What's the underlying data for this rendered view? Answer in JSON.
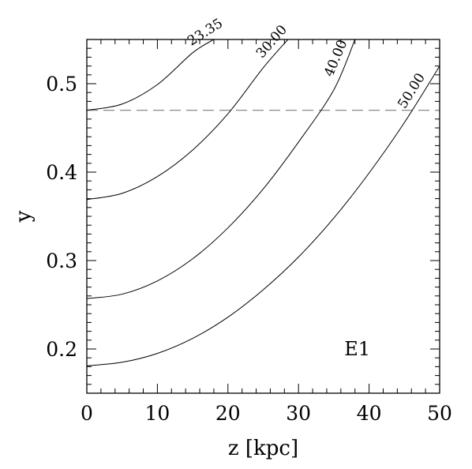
{
  "chart_data": {
    "type": "line",
    "xlabel": "z [kpc]",
    "ylabel": "y",
    "xlim": [
      0,
      50
    ],
    "ylim": [
      0.15,
      0.55
    ],
    "xticks": [
      0,
      10,
      20,
      30,
      40,
      50
    ],
    "xtick_labels": [
      "0",
      "10",
      "20",
      "30",
      "40",
      "50"
    ],
    "yticks": [
      0.2,
      0.3,
      0.4,
      0.5
    ],
    "ytick_labels": [
      "0.2",
      "0.3",
      "0.4",
      "0.5"
    ],
    "grid": false,
    "annotation": "E1",
    "reference_line": {
      "y": 0.47,
      "style": "dashed"
    },
    "series": [
      {
        "name": "23.35",
        "y0": 0.47,
        "x": [
          0,
          5,
          10,
          15,
          18
        ],
        "y": [
          0.47,
          0.477,
          0.499,
          0.535,
          0.55
        ]
      },
      {
        "name": "30.00",
        "y0": 0.369,
        "x": [
          0,
          5,
          10,
          15,
          20,
          25,
          28.5
        ],
        "y": [
          0.369,
          0.376,
          0.395,
          0.425,
          0.466,
          0.518,
          0.55
        ]
      },
      {
        "name": "40.00",
        "y0": 0.257,
        "x": [
          0,
          5,
          10,
          15,
          20,
          25,
          30,
          35,
          38
        ],
        "y": [
          0.257,
          0.262,
          0.277,
          0.302,
          0.337,
          0.381,
          0.434,
          0.493,
          0.55
        ]
      },
      {
        "name": "50.00",
        "y0": 0.181,
        "x": [
          0,
          5,
          10,
          15,
          20,
          25,
          30,
          35,
          40,
          45,
          50
        ],
        "y": [
          0.181,
          0.185,
          0.195,
          0.212,
          0.236,
          0.267,
          0.304,
          0.348,
          0.399,
          0.456,
          0.52
        ]
      }
    ]
  }
}
